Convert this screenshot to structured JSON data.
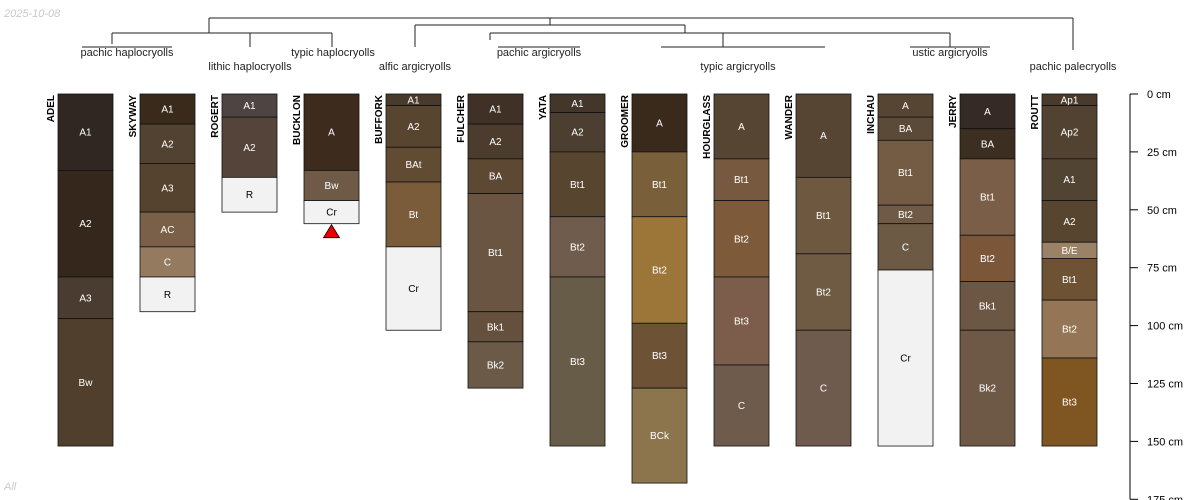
{
  "header": {
    "date": "2025-10-08"
  },
  "footer": {
    "label": "All"
  },
  "taxa": [
    {
      "id": "t1",
      "text": "pachic haplocryolls"
    },
    {
      "id": "t2",
      "text": "lithic haplocryolls"
    },
    {
      "id": "t3",
      "text": "typic haplocryolls"
    },
    {
      "id": "t4",
      "text": "alfic argicryolls"
    },
    {
      "id": "t5",
      "text": "pachic argicryolls"
    },
    {
      "id": "t6",
      "text": "typic argicryolls"
    },
    {
      "id": "t7",
      "text": "ustic argicryolls"
    },
    {
      "id": "t8",
      "text": "pachic palecryolls"
    }
  ],
  "depth_axis": {
    "unit": "cm",
    "max": 175,
    "ticks": [
      {
        "value": 0,
        "label": "0 cm"
      },
      {
        "value": 25,
        "label": "25 cm"
      },
      {
        "value": 50,
        "label": "50 cm"
      },
      {
        "value": 75,
        "label": "75 cm"
      },
      {
        "value": 100,
        "label": "100 cm"
      },
      {
        "value": 125,
        "label": "125 cm"
      },
      {
        "value": 150,
        "label": "150 cm"
      },
      {
        "value": 175,
        "label": "175 cm"
      }
    ]
  },
  "profiles": [
    {
      "name": "ADEL",
      "horizons": [
        {
          "name": "A1",
          "top": 0,
          "bottom": 33,
          "color": "#302722"
        },
        {
          "name": "A2",
          "top": 33,
          "bottom": 79,
          "color": "#35271b"
        },
        {
          "name": "A3",
          "top": 79,
          "bottom": 97,
          "color": "#4a3c30"
        },
        {
          "name": "Bw",
          "top": 97,
          "bottom": 152,
          "color": "#503f2c"
        }
      ]
    },
    {
      "name": "SKYWAY",
      "horizons": [
        {
          "name": "A1",
          "top": 0,
          "bottom": 13,
          "color": "#3a2a1c"
        },
        {
          "name": "A2",
          "top": 13,
          "bottom": 30,
          "color": "#514232"
        },
        {
          "name": "A3",
          "top": 30,
          "bottom": 51,
          "color": "#55432f"
        },
        {
          "name": "AC",
          "top": 51,
          "bottom": 66,
          "color": "#7a6048"
        },
        {
          "name": "C",
          "top": 66,
          "bottom": 79,
          "color": "#947a5e"
        },
        {
          "name": "R",
          "top": 79,
          "bottom": 94,
          "color": "#f2f2f2"
        }
      ]
    },
    {
      "name": "ROGERT",
      "horizons": [
        {
          "name": "A1",
          "top": 0,
          "bottom": 10,
          "color": "#4e4442"
        },
        {
          "name": "A2",
          "top": 10,
          "bottom": 36,
          "color": "#55443a"
        },
        {
          "name": "R",
          "top": 36,
          "bottom": 51,
          "color": "#f2f2f2"
        }
      ]
    },
    {
      "name": "BUCKLON",
      "horizons": [
        {
          "name": "A",
          "top": 0,
          "bottom": 33,
          "color": "#3d2b1e"
        },
        {
          "name": "Bw",
          "top": 33,
          "bottom": 46,
          "color": "#6e5a46"
        },
        {
          "name": "Cr",
          "top": 46,
          "bottom": 56,
          "color": "#f2f2f2"
        }
      ],
      "marker": true
    },
    {
      "name": "BUFFORK",
      "horizons": [
        {
          "name": "A1",
          "top": 0,
          "bottom": 5,
          "color": "#4a3a2b"
        },
        {
          "name": "A2",
          "top": 5,
          "bottom": 23,
          "color": "#574530"
        },
        {
          "name": "BAt",
          "top": 23,
          "bottom": 38,
          "color": "#624b33"
        },
        {
          "name": "Bt",
          "top": 38,
          "bottom": 66,
          "color": "#7a5b3a"
        },
        {
          "name": "Cr",
          "top": 66,
          "bottom": 102,
          "color": "#f2f2f2"
        }
      ]
    },
    {
      "name": "FULCHER",
      "horizons": [
        {
          "name": "A1",
          "top": 0,
          "bottom": 13,
          "color": "#3f3125"
        },
        {
          "name": "A2",
          "top": 13,
          "bottom": 28,
          "color": "#4b3c2e"
        },
        {
          "name": "BA",
          "top": 28,
          "bottom": 43,
          "color": "#5d4834"
        },
        {
          "name": "Bt1",
          "top": 43,
          "bottom": 94,
          "color": "#6a5442"
        },
        {
          "name": "Bk1",
          "top": 94,
          "bottom": 107,
          "color": "#64503c"
        },
        {
          "name": "Bk2",
          "top": 107,
          "bottom": 127,
          "color": "#6c5a48"
        }
      ]
    },
    {
      "name": "YATA",
      "horizons": [
        {
          "name": "A1",
          "top": 0,
          "bottom": 8,
          "color": "#43362a"
        },
        {
          "name": "A2",
          "top": 8,
          "bottom": 25,
          "color": "#4c3e31"
        },
        {
          "name": "Bt1",
          "top": 25,
          "bottom": 53,
          "color": "#574530"
        },
        {
          "name": "Bt2",
          "top": 53,
          "bottom": 79,
          "color": "#6f5c4d"
        },
        {
          "name": "Bt3",
          "top": 79,
          "bottom": 152,
          "color": "#675c48"
        }
      ]
    },
    {
      "name": "GROOMER",
      "horizons": [
        {
          "name": "A",
          "top": 0,
          "bottom": 25,
          "color": "#3a2a1c"
        },
        {
          "name": "Bt1",
          "top": 25,
          "bottom": 53,
          "color": "#7a5f3b"
        },
        {
          "name": "Bt2",
          "top": 53,
          "bottom": 99,
          "color": "#9c7638"
        },
        {
          "name": "Bt3",
          "top": 99,
          "bottom": 127,
          "color": "#6e5236"
        },
        {
          "name": "BCk",
          "top": 127,
          "bottom": 168,
          "color": "#8c744d"
        }
      ]
    },
    {
      "name": "HOURGLASS",
      "horizons": [
        {
          "name": "A",
          "top": 0,
          "bottom": 28,
          "color": "#574533"
        },
        {
          "name": "Bt1",
          "top": 28,
          "bottom": 46,
          "color": "#76593f"
        },
        {
          "name": "Bt2",
          "top": 46,
          "bottom": 79,
          "color": "#7c5a3a"
        },
        {
          "name": "Bt3",
          "top": 79,
          "bottom": 117,
          "color": "#7c5c4a"
        },
        {
          "name": "C",
          "top": 117,
          "bottom": 152,
          "color": "#6f5b4c"
        }
      ]
    },
    {
      "name": "WANDER",
      "horizons": [
        {
          "name": "A",
          "top": 0,
          "bottom": 36,
          "color": "#574533"
        },
        {
          "name": "Bt1",
          "top": 36,
          "bottom": 69,
          "color": "#6e5940"
        },
        {
          "name": "Bt2",
          "top": 69,
          "bottom": 102,
          "color": "#6f5a44"
        },
        {
          "name": "C",
          "top": 102,
          "bottom": 152,
          "color": "#6f5a4e"
        }
      ]
    },
    {
      "name": "INCHAU",
      "horizons": [
        {
          "name": "A",
          "top": 0,
          "bottom": 10,
          "color": "#574533"
        },
        {
          "name": "BA",
          "top": 10,
          "bottom": 20,
          "color": "#5c4a38"
        },
        {
          "name": "Bt1",
          "top": 20,
          "bottom": 48,
          "color": "#735c43"
        },
        {
          "name": "Bt2",
          "top": 48,
          "bottom": 56,
          "color": "#6e5a46"
        },
        {
          "name": "C",
          "top": 56,
          "bottom": 76,
          "color": "#6c5a44"
        },
        {
          "name": "Cr",
          "top": 76,
          "bottom": 152,
          "color": "#f2f2f2"
        }
      ]
    },
    {
      "name": "JERRY",
      "horizons": [
        {
          "name": "A",
          "top": 0,
          "bottom": 15,
          "color": "#352a26"
        },
        {
          "name": "BA",
          "top": 15,
          "bottom": 28,
          "color": "#3d2e22"
        },
        {
          "name": "Bt1",
          "top": 28,
          "bottom": 61,
          "color": "#7a5e48"
        },
        {
          "name": "Bt2",
          "top": 61,
          "bottom": 81,
          "color": "#7c5639"
        },
        {
          "name": "Bk1",
          "top": 81,
          "bottom": 102,
          "color": "#6b5744"
        },
        {
          "name": "Bk2",
          "top": 102,
          "bottom": 152,
          "color": "#6e5946"
        }
      ]
    },
    {
      "name": "ROUTT",
      "horizons": [
        {
          "name": "Ap1",
          "top": 0,
          "bottom": 5,
          "color": "#4a3a2b"
        },
        {
          "name": "Ap2",
          "top": 5,
          "bottom": 28,
          "color": "#514232"
        },
        {
          "name": "A1",
          "top": 28,
          "bottom": 46,
          "color": "#524433"
        },
        {
          "name": "A2",
          "top": 46,
          "bottom": 64,
          "color": "#574530"
        },
        {
          "name": "B/E",
          "top": 64,
          "bottom": 71,
          "color": "#9a8266"
        },
        {
          "name": "Bt1",
          "top": 71,
          "bottom": 89,
          "color": "#6e5234"
        },
        {
          "name": "Bt2",
          "top": 89,
          "bottom": 114,
          "color": "#947656"
        },
        {
          "name": "Bt3",
          "top": 114,
          "bottom": 152,
          "color": "#7f5522"
        }
      ]
    }
  ]
}
